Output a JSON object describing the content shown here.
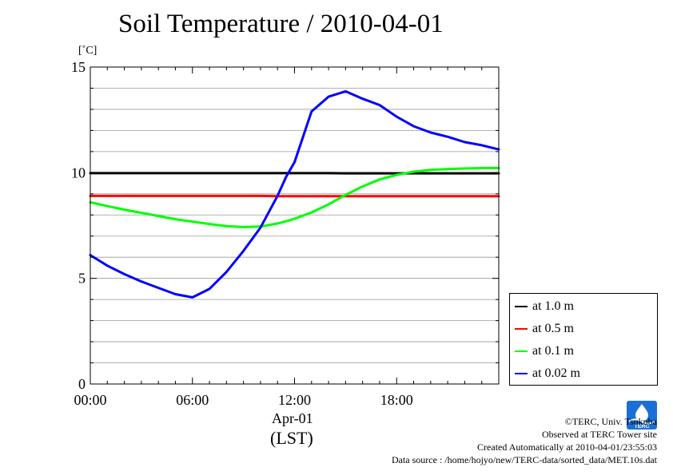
{
  "title": "Soil Temperature / 2010-04-01",
  "unit_label": "[˚C]",
  "x_date_label": "Apr-01",
  "x_tz_label": "(LST)",
  "credits": {
    "line1": "©TERC, Univ. Tsukuba",
    "line2": "Observed at TERC Tower site",
    "line3": "Created Automatically at 2010-04-01/23:55:03",
    "line4": "Data source : /home/hojyo/new/TERC-data/sorted_data/MET.10s.dat"
  },
  "logo_text": "TERC",
  "chart_data": {
    "type": "line",
    "title": "Soil Temperature / 2010-04-01",
    "ylabel": "[˚C]",
    "xlabel": "Apr-01 (LST)",
    "xlim": [
      0,
      24
    ],
    "ylim": [
      0,
      15
    ],
    "x_ticks": [
      0,
      6,
      12,
      18
    ],
    "x_tick_labels": [
      "00:00",
      "06:00",
      "12:00",
      "18:00"
    ],
    "y_ticks": [
      0,
      5,
      10,
      15
    ],
    "y_tick_labels": [
      "0",
      "5",
      "10",
      "15"
    ],
    "grid": true,
    "legend_position": "right-bottom",
    "x": [
      0,
      1,
      2,
      3,
      4,
      5,
      6,
      7,
      8,
      9,
      10,
      11,
      11.5,
      12,
      13,
      14,
      15,
      16,
      17,
      18,
      19,
      20,
      21,
      22,
      23,
      24
    ],
    "series": [
      {
        "name": "at 1.0 m",
        "color": "#000000",
        "values": [
          9.98,
          9.98,
          9.98,
          9.98,
          9.98,
          9.98,
          9.98,
          9.98,
          9.98,
          9.98,
          9.98,
          9.98,
          9.98,
          9.98,
          9.98,
          9.98,
          9.97,
          9.97,
          9.97,
          9.97,
          9.97,
          9.97,
          9.97,
          9.97,
          9.97,
          9.97
        ]
      },
      {
        "name": "at 0.5 m",
        "color": "#ff0000",
        "values": [
          8.9,
          8.9,
          8.9,
          8.9,
          8.9,
          8.9,
          8.9,
          8.9,
          8.9,
          8.9,
          8.9,
          8.89,
          8.89,
          8.89,
          8.89,
          8.89,
          8.89,
          8.89,
          8.89,
          8.89,
          8.89,
          8.89,
          8.89,
          8.89,
          8.89,
          8.89
        ]
      },
      {
        "name": "at 0.1 m",
        "color": "#00ff00",
        "values": [
          8.6,
          8.42,
          8.25,
          8.1,
          7.95,
          7.8,
          7.68,
          7.57,
          7.47,
          7.43,
          7.45,
          7.6,
          7.7,
          7.82,
          8.12,
          8.5,
          8.95,
          9.35,
          9.68,
          9.9,
          10.05,
          10.13,
          10.17,
          10.2,
          10.22,
          10.22
        ]
      },
      {
        "name": "at 0.02 m",
        "color": "#0000ff",
        "values": [
          6.1,
          5.6,
          5.2,
          4.85,
          4.55,
          4.25,
          4.1,
          4.5,
          5.3,
          6.3,
          7.4,
          8.9,
          9.8,
          10.5,
          12.9,
          13.6,
          13.85,
          13.5,
          13.2,
          12.65,
          12.2,
          11.9,
          11.7,
          11.45,
          11.3,
          11.1
        ]
      }
    ]
  }
}
